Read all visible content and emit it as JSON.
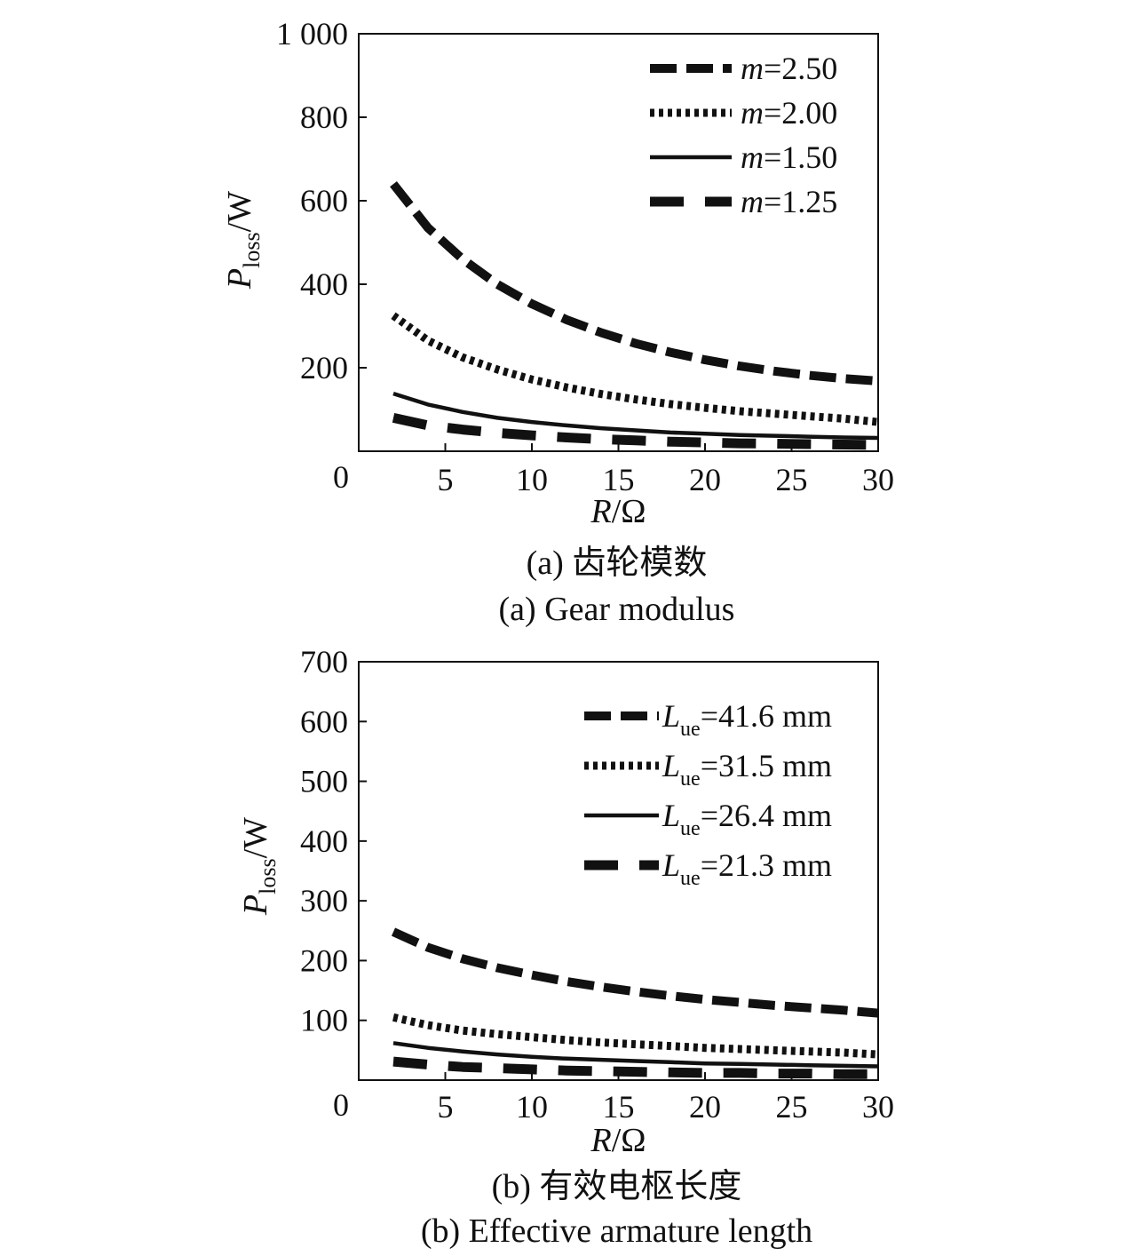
{
  "chart_data": [
    {
      "type": "line",
      "caption_cn": "(a) 齿轮模数",
      "caption_en": "(a) Gear modulus",
      "xlabel": {
        "var": "R",
        "unit": "/Ω"
      },
      "ylabel": {
        "var": "P",
        "sub": "loss",
        "unit": "/W"
      },
      "xlim": [
        0,
        30
      ],
      "ylim": [
        0,
        1000
      ],
      "xticks": [
        5,
        10,
        15,
        20,
        25,
        30
      ],
      "xtick_labels": [
        "5",
        "10",
        "15",
        "20",
        "25",
        "30"
      ],
      "yticks": [
        200,
        400,
        600,
        800,
        1000
      ],
      "ytick_labels": [
        "200",
        "400",
        "600",
        "800",
        "1 000"
      ],
      "origin_label": "0",
      "legend_position": "top-right",
      "series": [
        {
          "name": "m=2.50",
          "var": "m",
          "sub": "",
          "value": "=2.50",
          "style": "dashed-heavy",
          "x": [
            2,
            4,
            6,
            8,
            10,
            12,
            14,
            16,
            18,
            20,
            22,
            24,
            26,
            28,
            30
          ],
          "y": [
            640,
            535,
            460,
            400,
            353,
            315,
            284,
            258,
            237,
            219,
            204,
            192,
            182,
            174,
            168
          ]
        },
        {
          "name": "m=2.00",
          "var": "m",
          "sub": "",
          "value": "=2.00",
          "style": "dotted",
          "x": [
            2,
            4,
            6,
            8,
            10,
            12,
            14,
            16,
            18,
            20,
            22,
            24,
            26,
            28,
            30
          ],
          "y": [
            325,
            265,
            225,
            196,
            172,
            153,
            137,
            124,
            113,
            104,
            96,
            90,
            84,
            78,
            70
          ]
        },
        {
          "name": "m=1.50",
          "var": "m",
          "sub": "",
          "value": "=1.50",
          "style": "solid",
          "x": [
            2,
            4,
            6,
            8,
            10,
            12,
            14,
            16,
            18,
            20,
            22,
            24,
            26,
            28,
            30
          ],
          "y": [
            138,
            112,
            94,
            80,
            70,
            62,
            55,
            50,
            45,
            42,
            39,
            37,
            35,
            33,
            32
          ]
        },
        {
          "name": "m=1.25",
          "var": "m",
          "sub": "",
          "value": "=1.25",
          "style": "dashed-long",
          "x": [
            2,
            4,
            6,
            8,
            10,
            12,
            14,
            16,
            18,
            20,
            22,
            24,
            26,
            28,
            30
          ],
          "y": [
            80,
            62,
            52,
            44,
            38,
            33,
            29,
            26,
            23,
            21,
            19,
            18,
            17,
            16,
            15
          ]
        }
      ]
    },
    {
      "type": "line",
      "caption_cn": "(b) 有效电枢长度",
      "caption_en": "(b) Effective armature length",
      "xlabel": {
        "var": "R",
        "unit": "/Ω"
      },
      "ylabel": {
        "var": "P",
        "sub": "loss",
        "unit": "/W"
      },
      "xlim": [
        0,
        30
      ],
      "ylim": [
        0,
        700
      ],
      "xticks": [
        5,
        10,
        15,
        20,
        25,
        30
      ],
      "xtick_labels": [
        "5",
        "10",
        "15",
        "20",
        "25",
        "30"
      ],
      "yticks": [
        100,
        200,
        300,
        400,
        500,
        600,
        700
      ],
      "ytick_labels": [
        "100",
        "200",
        "300",
        "400",
        "500",
        "600",
        "700"
      ],
      "origin_label": "0",
      "legend_position": "top-right",
      "series": [
        {
          "name": "Lue=41.6 mm",
          "var": "L",
          "sub": "ue",
          "value": "=41.6 mm",
          "style": "dashed-heavy",
          "x": [
            2,
            4,
            6,
            8,
            10,
            12,
            14,
            16,
            18,
            20,
            22,
            24,
            26,
            28,
            30
          ],
          "y": [
            248,
            222,
            203,
            188,
            176,
            165,
            156,
            148,
            141,
            135,
            130,
            125,
            121,
            117,
            112
          ]
        },
        {
          "name": "Lue=31.5 mm",
          "var": "L",
          "sub": "ue",
          "value": "=31.5 mm",
          "style": "dotted",
          "x": [
            2,
            4,
            6,
            8,
            10,
            12,
            14,
            16,
            18,
            20,
            22,
            24,
            26,
            28,
            30
          ],
          "y": [
            105,
            92,
            83,
            77,
            72,
            67,
            63,
            60,
            57,
            54,
            52,
            50,
            48,
            46,
            43
          ]
        },
        {
          "name": "Lue=26.4 mm",
          "var": "L",
          "sub": "ue",
          "value": "=26.4 mm",
          "style": "solid",
          "x": [
            2,
            4,
            6,
            8,
            10,
            12,
            14,
            16,
            18,
            20,
            22,
            24,
            26,
            28,
            30
          ],
          "y": [
            62,
            54,
            48,
            43,
            39,
            36,
            34,
            32,
            30,
            28,
            27,
            26,
            25,
            24,
            23
          ]
        },
        {
          "name": "Lue=21.3 mm",
          "var": "L",
          "sub": "ue",
          "value": "=21.3 mm",
          "style": "dashed-long",
          "x": [
            2,
            4,
            6,
            8,
            10,
            12,
            14,
            16,
            18,
            20,
            22,
            24,
            26,
            28,
            30
          ],
          "y": [
            31,
            26,
            22,
            20,
            18,
            16,
            15,
            14,
            13,
            12,
            12,
            11,
            11,
            10,
            10
          ]
        }
      ]
    }
  ]
}
